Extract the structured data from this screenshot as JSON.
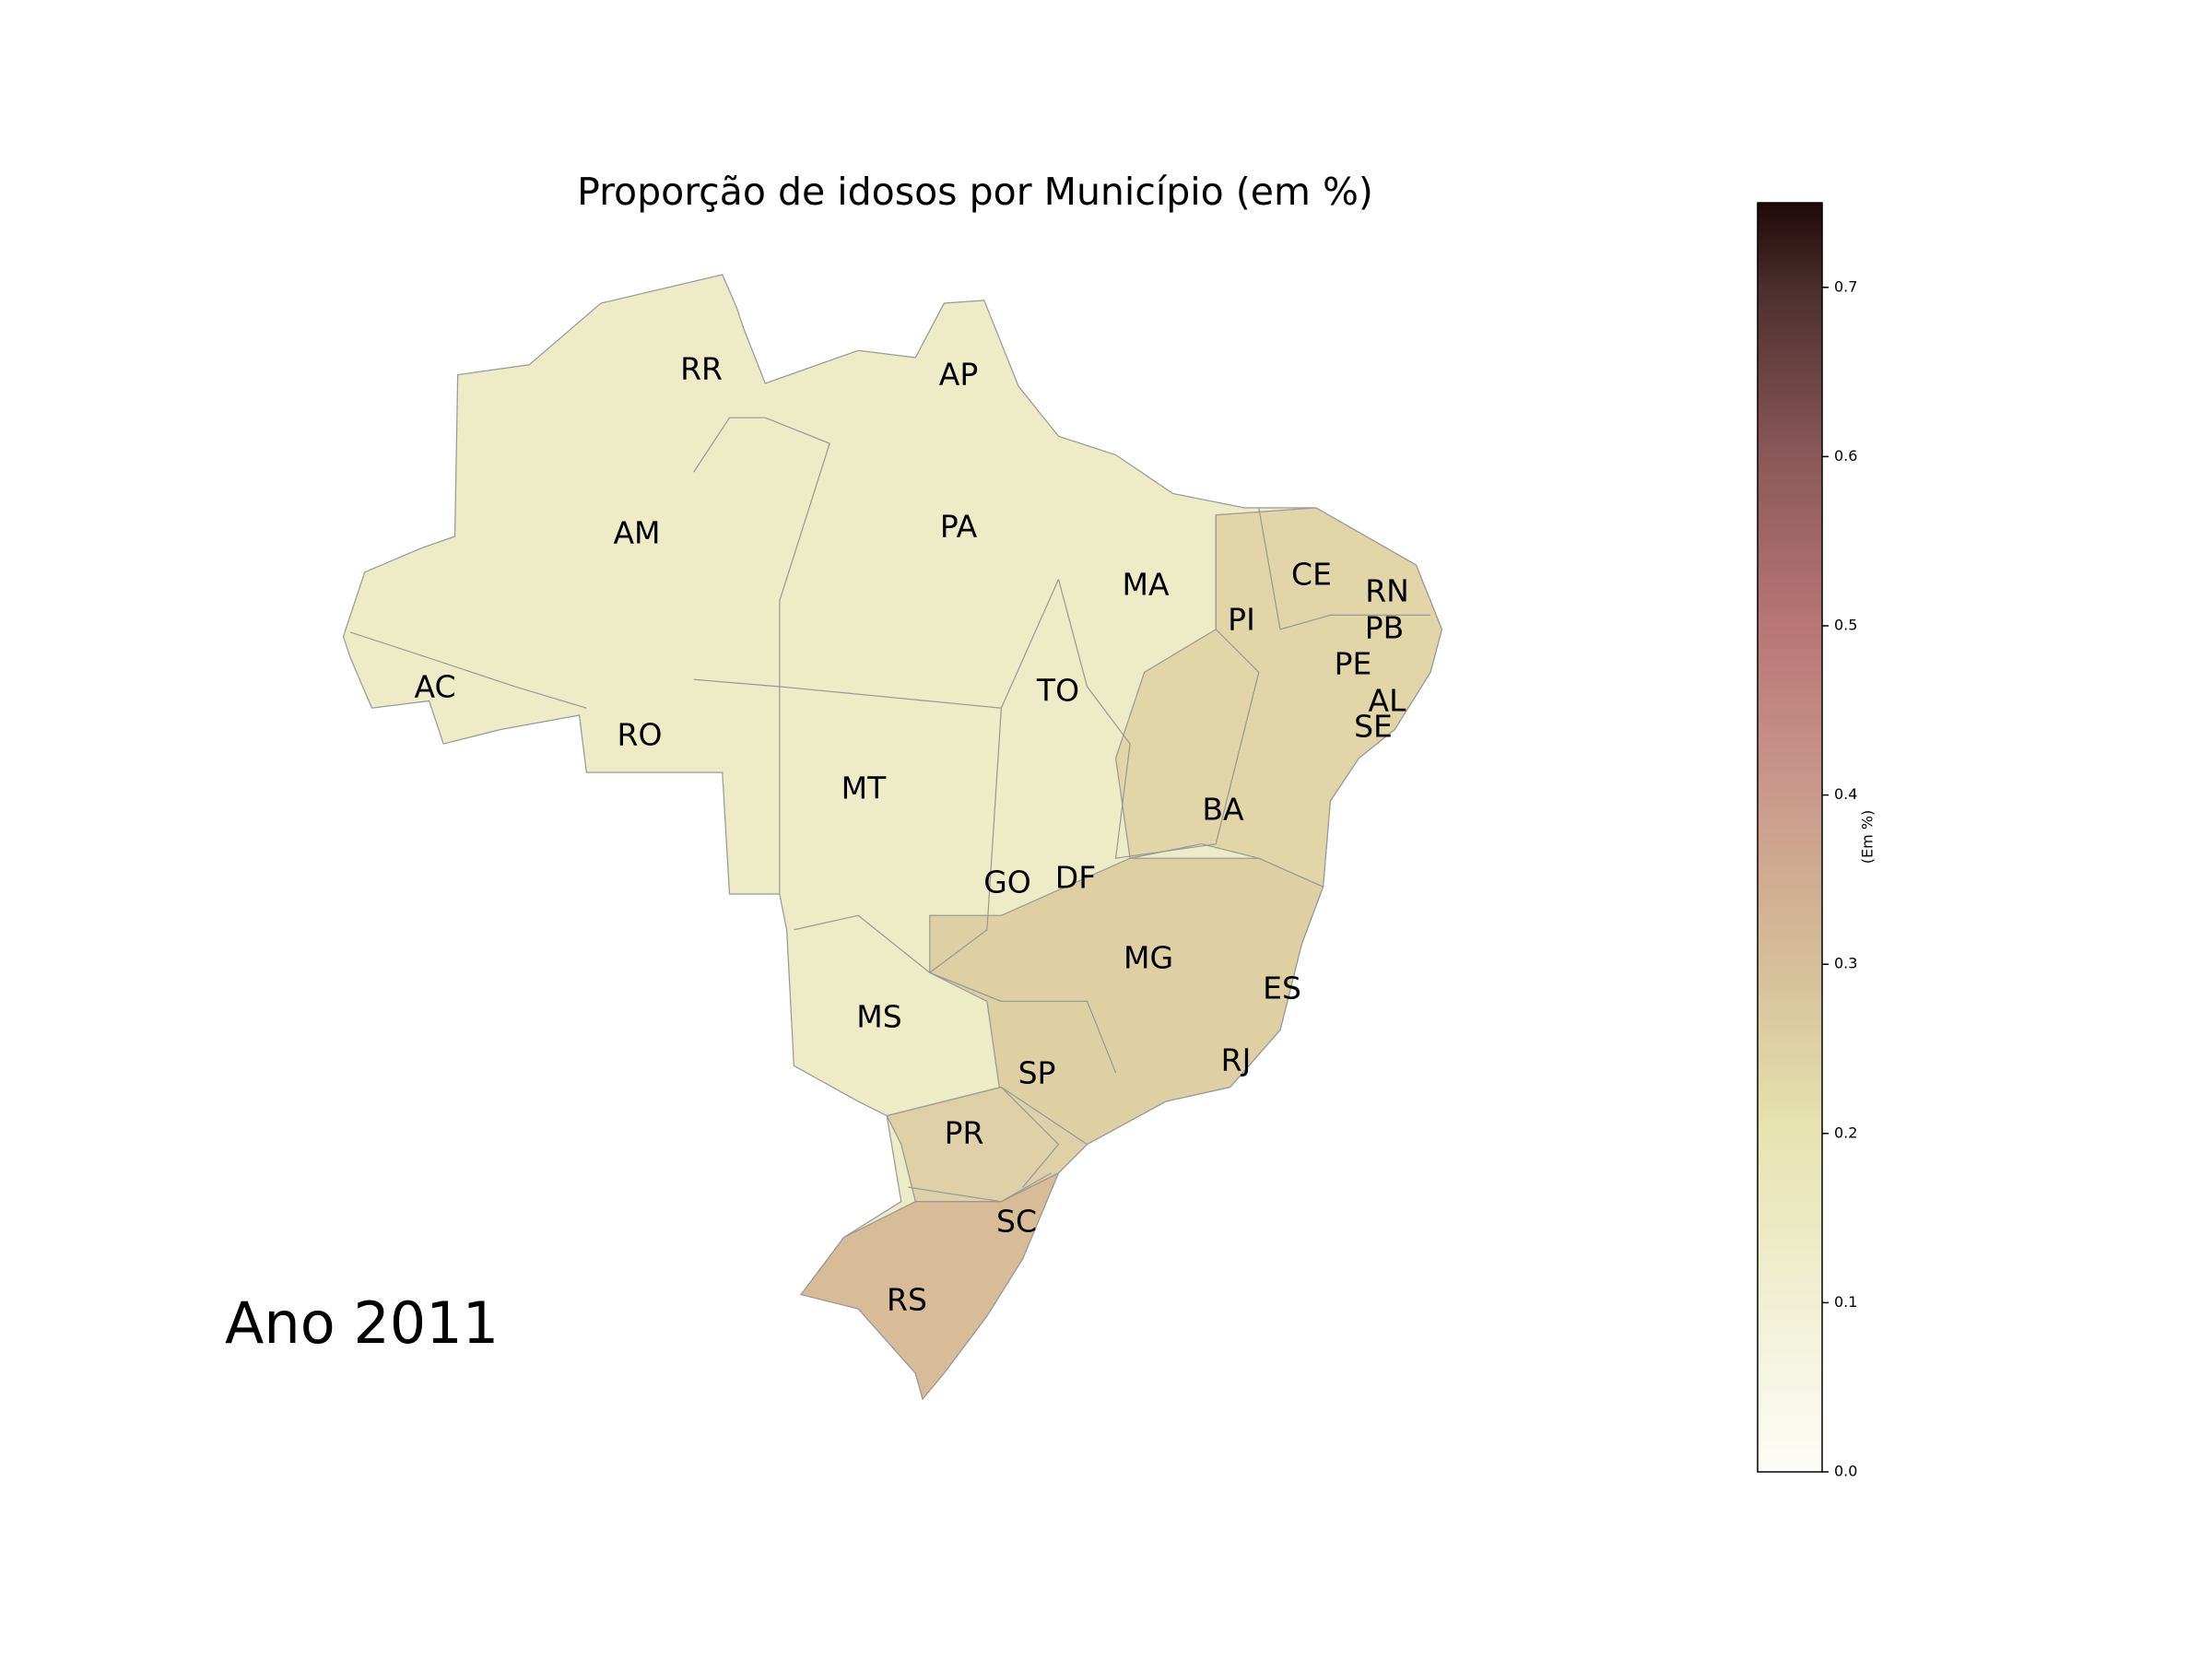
{
  "title": "Proporção de idosos por Município (em %)",
  "year_label": "Ano 2011",
  "states": [
    "RR",
    "AP",
    "AM",
    "PA",
    "MA",
    "CE",
    "RN",
    "PI",
    "PB",
    "PE",
    "AL",
    "SE",
    "AC",
    "TO",
    "RO",
    "MT",
    "BA",
    "GO",
    "DF",
    "MG",
    "ES",
    "MS",
    "RJ",
    "SP",
    "PR",
    "SC",
    "RS"
  ],
  "colorbar": {
    "label": "(Em %)",
    "lim": [
      0,
      0.75
    ],
    "ticks": [
      {
        "value": 0,
        "label": "0.0"
      },
      {
        "value": 0.1,
        "label": "0.1"
      },
      {
        "value": 0.2,
        "label": "0.2"
      },
      {
        "value": 0.3,
        "label": "0.3"
      },
      {
        "value": 0.4,
        "label": "0.4"
      },
      {
        "value": 0.5,
        "label": "0.5"
      },
      {
        "value": 0.6,
        "label": "0.6"
      },
      {
        "value": 0.7,
        "label": "0.7"
      }
    ]
  }
}
